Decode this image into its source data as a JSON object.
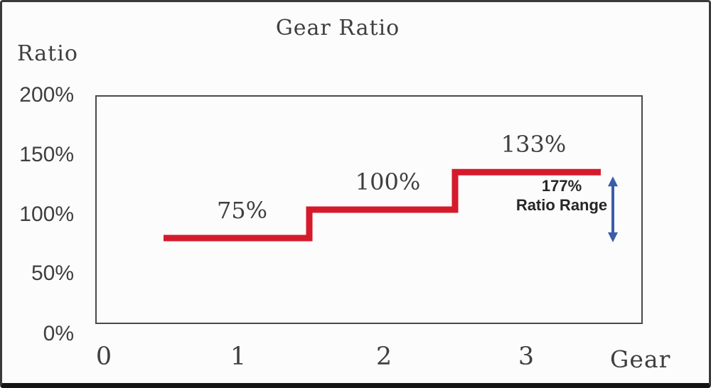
{
  "chart_data": {
    "type": "line",
    "subtype": "step",
    "title": "Gear Ratio",
    "ylabel": "Ratio",
    "xlabel": "Gear",
    "y_ticks": [
      "200%",
      "150%",
      "100%",
      "50%",
      "0%"
    ],
    "x_ticks": [
      "0",
      "1",
      "2",
      "3"
    ],
    "ylim": [
      0,
      200
    ],
    "xlim": [
      0,
      3.75
    ],
    "grid": false,
    "legend": false,
    "steps": [
      {
        "gear": 1,
        "ratio_pct": 75,
        "label": "75%",
        "x_start": 0.5,
        "x_end": 1.5
      },
      {
        "gear": 2,
        "ratio_pct": 100,
        "label": "100%",
        "x_start": 1.5,
        "x_end": 2.5
      },
      {
        "gear": 3,
        "ratio_pct": 133,
        "label": "133%",
        "x_start": 2.5,
        "x_end": 3.5
      }
    ],
    "annotation": {
      "value": "177%",
      "label": "Ratio Range"
    },
    "colors": {
      "line": "#d51a2c",
      "arrow": "#3a5da8",
      "text": "#3f3f3f"
    }
  }
}
